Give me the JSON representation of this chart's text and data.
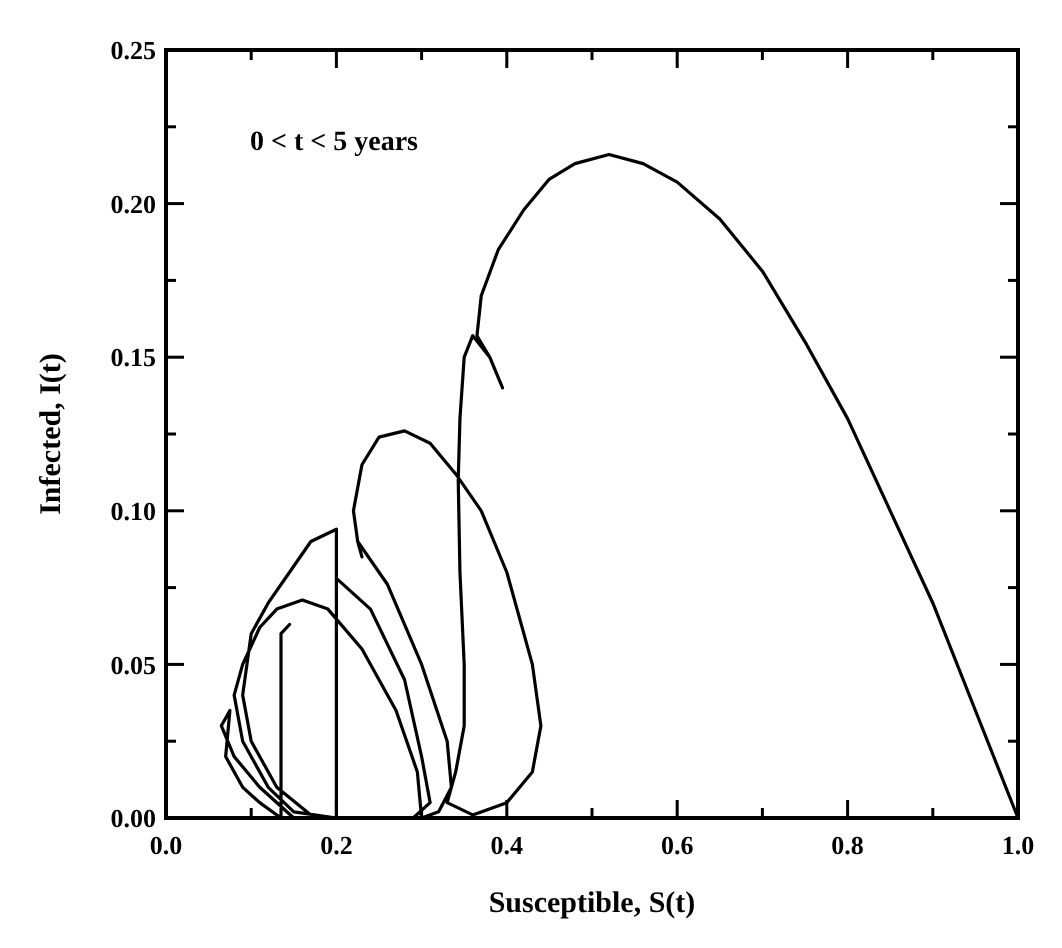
{
  "chart_data": {
    "type": "line",
    "xlabel": "Susceptible, S(t)",
    "ylabel": "Infected, I(t)",
    "annotations": [
      "0 < t < 5 years"
    ],
    "xlim": [
      0,
      1
    ],
    "ylim": [
      0,
      0.25
    ],
    "xticks": [
      {
        "value": 0,
        "label": "0.0"
      },
      {
        "value": 0.1,
        "label": null
      },
      {
        "value": 0.2,
        "label": "0.2"
      },
      {
        "value": 0.3,
        "label": null
      },
      {
        "value": 0.4,
        "label": "0.4"
      },
      {
        "value": 0.5,
        "label": null
      },
      {
        "value": 0.6,
        "label": "0.6"
      },
      {
        "value": 0.7,
        "label": null
      },
      {
        "value": 0.8,
        "label": "0.8"
      },
      {
        "value": 0.9,
        "label": null
      },
      {
        "value": 1,
        "label": "1.0"
      }
    ],
    "yticks": [
      {
        "value": 0,
        "label": "0.00"
      },
      {
        "value": 0.025,
        "label": null
      },
      {
        "value": 0.05,
        "label": "0.05"
      },
      {
        "value": 0.075,
        "label": null
      },
      {
        "value": 0.1,
        "label": "0.10"
      },
      {
        "value": 0.125,
        "label": null
      },
      {
        "value": 0.15,
        "label": "0.15"
      },
      {
        "value": 0.175,
        "label": null
      },
      {
        "value": 0.2,
        "label": "0.20"
      },
      {
        "value": 0.225,
        "label": null
      },
      {
        "value": 0.25,
        "label": "0.25"
      }
    ],
    "grid": false,
    "marker": "none",
    "line_style": "solid",
    "series": [
      {
        "color": "#000000",
        "x": [
          1.0,
          0.95,
          0.9,
          0.85,
          0.8,
          0.75,
          0.7,
          0.65,
          0.6,
          0.56,
          0.52,
          0.48,
          0.45,
          0.42,
          0.39,
          0.37,
          0.365,
          0.38,
          0.395,
          0.38,
          0.36,
          0.35,
          0.345,
          0.343,
          0.345,
          0.35,
          0.35,
          0.34,
          0.33,
          0.36,
          0.4,
          0.43,
          0.44,
          0.43,
          0.4,
          0.37,
          0.34,
          0.31,
          0.28,
          0.25,
          0.23,
          0.22,
          0.225,
          0.23,
          0.225,
          0.26,
          0.3,
          0.33,
          0.335,
          0.32,
          0.3,
          0.25,
          0.2,
          0.17,
          0.13,
          0.1,
          0.09,
          0.1,
          0.12,
          0.145,
          0.17,
          0.2,
          0.2,
          0.2,
          0.24,
          0.28,
          0.3,
          0.31,
          0.29,
          0.2,
          0.15,
          0.12,
          0.09,
          0.08,
          0.09,
          0.11,
          0.13,
          0.16,
          0.19,
          0.23,
          0.27,
          0.295,
          0.3,
          0.2,
          0.15,
          0.11,
          0.08,
          0.065,
          0.075,
          0.07,
          0.09,
          0.11,
          0.135,
          0.135,
          0.145
        ],
        "values": [
          0.0,
          0.035,
          0.07,
          0.1,
          0.13,
          0.155,
          0.178,
          0.195,
          0.207,
          0.213,
          0.216,
          0.213,
          0.208,
          0.198,
          0.185,
          0.17,
          0.157,
          0.15,
          0.14,
          0.15,
          0.157,
          0.15,
          0.13,
          0.11,
          0.08,
          0.05,
          0.03,
          0.015,
          0.005,
          0.001,
          0.005,
          0.015,
          0.03,
          0.05,
          0.08,
          0.1,
          0.112,
          0.122,
          0.126,
          0.124,
          0.115,
          0.1,
          0.09,
          0.085,
          0.09,
          0.076,
          0.05,
          0.025,
          0.01,
          0.002,
          0.0,
          0.0,
          0.0,
          0.001,
          0.01,
          0.025,
          0.04,
          0.06,
          0.07,
          0.08,
          0.09,
          0.094,
          0.0,
          0.078,
          0.068,
          0.045,
          0.02,
          0.005,
          0.0,
          0.0,
          0.002,
          0.01,
          0.025,
          0.04,
          0.05,
          0.062,
          0.068,
          0.071,
          0.068,
          0.055,
          0.035,
          0.015,
          0.0,
          0.0,
          0.0,
          0.01,
          0.02,
          0.03,
          0.035,
          0.02,
          0.01,
          0.005,
          0.0,
          0.06,
          0.063
        ]
      }
    ]
  }
}
